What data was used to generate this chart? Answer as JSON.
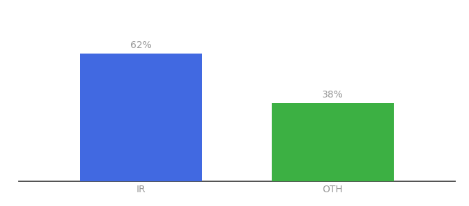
{
  "categories": [
    "IR",
    "OTH"
  ],
  "values": [
    62,
    38
  ],
  "bar_colors": [
    "#4169e1",
    "#3cb043"
  ],
  "label_color": "#999999",
  "label_fontsize": 10,
  "tick_fontsize": 10,
  "tick_color": "#999999",
  "background_color": "#ffffff",
  "ylim": [
    0,
    80
  ],
  "bar_width": 0.28,
  "x_positions": [
    0.28,
    0.72
  ],
  "xlim": [
    0.0,
    1.0
  ]
}
